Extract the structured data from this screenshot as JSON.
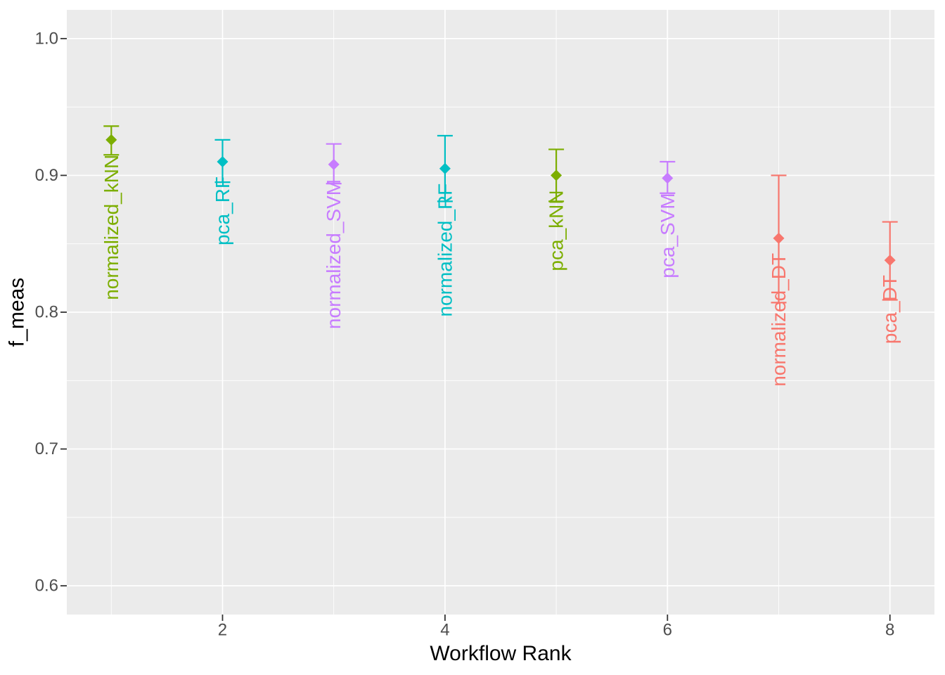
{
  "figure": {
    "background": "#FFFFFF",
    "panel_background": "#EBEBEB",
    "grid_color": "#FFFFFF",
    "tick_color": "#333333",
    "tick_label_color": "#4D4D4D",
    "axis_title_color": "#000000",
    "legend": "none",
    "point_shape": "diamond"
  },
  "chart_data": {
    "type": "scatter",
    "subtype": "points with vertical error bars and rotated text labels (ggplot2-style workflow rank plot)",
    "title": "",
    "xlabel": "Workflow Rank",
    "ylabel": "f_meas",
    "xlim": [
      0.6,
      8.4
    ],
    "ylim": [
      0.579,
      1.021
    ],
    "x_tick_values": [
      2,
      4,
      6,
      8
    ],
    "x_tick_labels": [
      "2",
      "4",
      "6",
      "8"
    ],
    "x_minor_gridlines": [
      1,
      3,
      5,
      7
    ],
    "y_tick_values": [
      1.0,
      0.9,
      0.8,
      0.7,
      0.6
    ],
    "y_tick_labels": [
      "1.0",
      "0.9",
      "0.8",
      "0.7",
      "0.6"
    ],
    "y_minor_gridlines": [
      0.95,
      0.85,
      0.75,
      0.65
    ],
    "grid": "white major and minor gridlines on grey panel",
    "legend_position": "none",
    "series": [
      {
        "rank": 1,
        "workflow": "normalized_kNN",
        "model": "kNN",
        "mean": 0.926,
        "ymin": 0.915,
        "ymax": 0.936,
        "color": "#7CAE00"
      },
      {
        "rank": 2,
        "workflow": "pca_RF",
        "model": "RF",
        "mean": 0.91,
        "ymin": 0.895,
        "ymax": 0.926,
        "color": "#00BFC4"
      },
      {
        "rank": 3,
        "workflow": "normalized_SVM",
        "model": "SVM",
        "mean": 0.908,
        "ymin": 0.894,
        "ymax": 0.923,
        "color": "#C77CFF"
      },
      {
        "rank": 4,
        "workflow": "normalized_RF",
        "model": "RF",
        "mean": 0.905,
        "ymin": 0.881,
        "ymax": 0.929,
        "color": "#00BFC4"
      },
      {
        "rank": 5,
        "workflow": "pca_kNN",
        "model": "kNN",
        "mean": 0.9,
        "ymin": 0.881,
        "ymax": 0.919,
        "color": "#7CAE00"
      },
      {
        "rank": 6,
        "workflow": "pca_SVM",
        "model": "SVM",
        "mean": 0.898,
        "ymin": 0.887,
        "ymax": 0.91,
        "color": "#C77CFF"
      },
      {
        "rank": 7,
        "workflow": "normalized_DT",
        "model": "DT",
        "mean": 0.854,
        "ymin": 0.807,
        "ymax": 0.9,
        "color": "#F8766D"
      },
      {
        "rank": 8,
        "workflow": "pca_DT",
        "model": "DT",
        "mean": 0.838,
        "ymin": 0.809,
        "ymax": 0.866,
        "color": "#F8766D"
      }
    ]
  }
}
